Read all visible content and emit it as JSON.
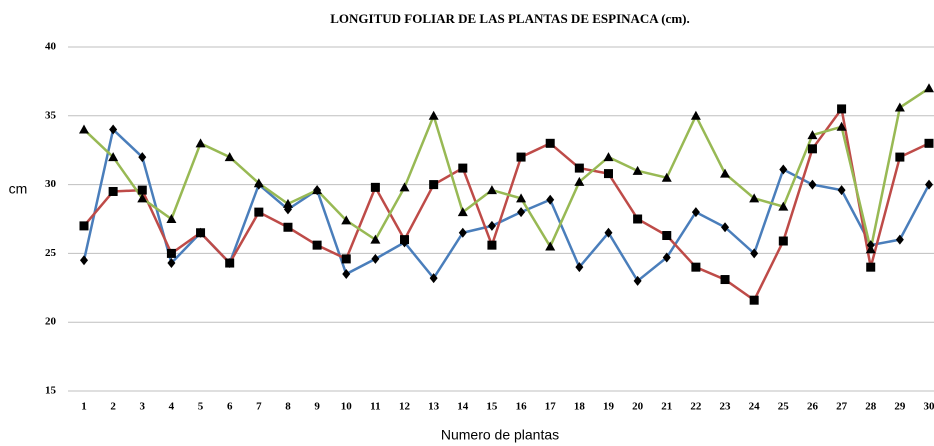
{
  "chart_data": {
    "type": "line",
    "title": "LONGITUD FOLIAR DE LAS PLANTAS DE ESPINACA (cm).",
    "y_label": "cm",
    "x_label": "Numero de plantas",
    "categories": [
      1,
      2,
      3,
      4,
      5,
      6,
      7,
      8,
      9,
      10,
      11,
      12,
      13,
      14,
      15,
      16,
      17,
      18,
      19,
      20,
      21,
      22,
      23,
      24,
      25,
      26,
      27,
      28,
      29,
      30
    ],
    "series": [
      {
        "color": "#4a7ebb",
        "marker": "diamond",
        "values": [
          24.5,
          34,
          32,
          24.3,
          26.5,
          24.3,
          30,
          28.2,
          29.6,
          23.5,
          24.6,
          25.8,
          23.2,
          26.5,
          27,
          28,
          28.9,
          24,
          26.5,
          23,
          24.7,
          28,
          26.9,
          25,
          31.1,
          30,
          29.6,
          25.6,
          26,
          30
        ]
      },
      {
        "color": "#be4b48",
        "marker": "square",
        "values": [
          27,
          29.5,
          29.6,
          25,
          26.5,
          24.3,
          28,
          26.9,
          25.6,
          24.6,
          29.8,
          26,
          30,
          31.2,
          25.6,
          32,
          33,
          31.2,
          30.8,
          27.5,
          26.3,
          24,
          23.1,
          21.6,
          25.9,
          32.6,
          35.5,
          24,
          32,
          33
        ]
      },
      {
        "color": "#98b954",
        "marker": "triangle",
        "values": [
          34,
          32,
          29,
          27.5,
          33,
          32,
          30.1,
          28.6,
          29.6,
          27.4,
          26,
          29.8,
          35,
          28,
          29.6,
          29,
          25.5,
          30.2,
          32,
          31,
          30.5,
          35,
          30.8,
          29,
          28.4,
          33.6,
          34.2,
          25.3,
          35.6,
          37
        ]
      }
    ],
    "ylim": [
      15,
      40
    ],
    "yticks": [
      15,
      20,
      25,
      30,
      35,
      40
    ],
    "grid": true
  }
}
